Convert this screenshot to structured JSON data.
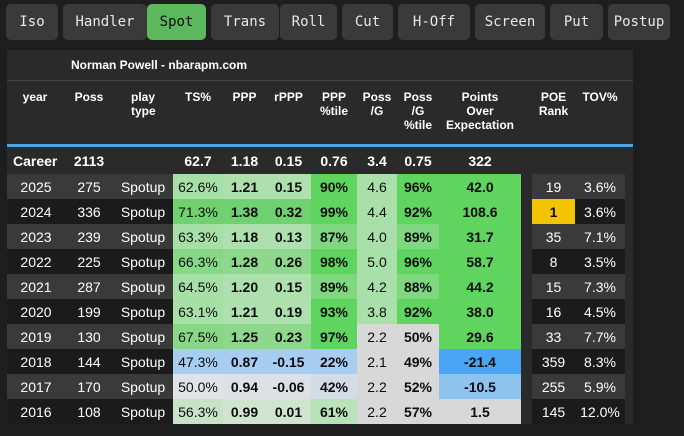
{
  "tabs": [
    {
      "label": "Iso",
      "active": false
    },
    {
      "label": "Handler",
      "active": false
    },
    {
      "label": "Spot",
      "active": true
    },
    {
      "label": "Trans",
      "active": false
    },
    {
      "label": "Roll",
      "active": false
    },
    {
      "label": "Cut",
      "active": false
    },
    {
      "label": "H-Off",
      "active": false
    },
    {
      "label": "Screen",
      "active": false
    },
    {
      "label": "Put",
      "active": false
    },
    {
      "label": "Postup",
      "active": false
    }
  ],
  "table": {
    "title": "Norman Powell - nbarapm.com",
    "headers": [
      "year",
      "Poss",
      "play\ntype",
      "TS%",
      "PPP",
      "rPPP",
      "PPP\n%tile",
      "Poss\n/G",
      "Poss\n/G\n%tile",
      "Points\nOver\nExpectation",
      "POE\nRank",
      "TOV%"
    ],
    "career": {
      "label": "Career",
      "poss": "2113",
      "play_type": "",
      "ts": "62.7",
      "ppp": "1.18",
      "rppp": "0.15",
      "ppp_pct": "0.76",
      "poss_g": "3.4",
      "poss_g_pct": "0.75",
      "poe": "322",
      "poe_rank": "",
      "tov": ""
    },
    "rows": [
      {
        "year": "2025",
        "poss": "275",
        "play_type": "Spotup",
        "ts": "62.6%",
        "ppp": "1.21",
        "rppp": "0.15",
        "ppp_pct": "90%",
        "poss_g": "4.6",
        "poss_g_pct": "96%",
        "poe": "42.0",
        "poe_rank": "19",
        "tov": "3.6%"
      },
      {
        "year": "2024",
        "poss": "336",
        "play_type": "Spotup",
        "ts": "71.3%",
        "ppp": "1.38",
        "rppp": "0.32",
        "ppp_pct": "99%",
        "poss_g": "4.4",
        "poss_g_pct": "92%",
        "poe": "108.6",
        "poe_rank": "1",
        "tov": "3.6%"
      },
      {
        "year": "2023",
        "poss": "239",
        "play_type": "Spotup",
        "ts": "63.3%",
        "ppp": "1.18",
        "rppp": "0.13",
        "ppp_pct": "87%",
        "poss_g": "4.0",
        "poss_g_pct": "89%",
        "poe": "31.7",
        "poe_rank": "35",
        "tov": "7.1%"
      },
      {
        "year": "2022",
        "poss": "225",
        "play_type": "Spotup",
        "ts": "66.3%",
        "ppp": "1.28",
        "rppp": "0.26",
        "ppp_pct": "98%",
        "poss_g": "5.0",
        "poss_g_pct": "96%",
        "poe": "58.7",
        "poe_rank": "8",
        "tov": "3.5%"
      },
      {
        "year": "2021",
        "poss": "287",
        "play_type": "Spotup",
        "ts": "64.5%",
        "ppp": "1.20",
        "rppp": "0.15",
        "ppp_pct": "89%",
        "poss_g": "4.2",
        "poss_g_pct": "88%",
        "poe": "44.2",
        "poe_rank": "15",
        "tov": "7.3%"
      },
      {
        "year": "2020",
        "poss": "199",
        "play_type": "Spotup",
        "ts": "63.1%",
        "ppp": "1.21",
        "rppp": "0.19",
        "ppp_pct": "93%",
        "poss_g": "3.8",
        "poss_g_pct": "92%",
        "poe": "38.0",
        "poe_rank": "16",
        "tov": "4.5%"
      },
      {
        "year": "2019",
        "poss": "130",
        "play_type": "Spotup",
        "ts": "67.5%",
        "ppp": "1.25",
        "rppp": "0.23",
        "ppp_pct": "97%",
        "poss_g": "2.2",
        "poss_g_pct": "50%",
        "poe": "29.6",
        "poe_rank": "33",
        "tov": "7.7%"
      },
      {
        "year": "2018",
        "poss": "144",
        "play_type": "Spotup",
        "ts": "47.3%",
        "ppp": "0.87",
        "rppp": "-0.15",
        "ppp_pct": "22%",
        "poss_g": "2.1",
        "poss_g_pct": "49%",
        "poe": "-21.4",
        "poe_rank": "359",
        "tov": "8.3%"
      },
      {
        "year": "2017",
        "poss": "170",
        "play_type": "Spotup",
        "ts": "50.0%",
        "ppp": "0.94",
        "rppp": "-0.06",
        "ppp_pct": "42%",
        "poss_g": "2.2",
        "poss_g_pct": "52%",
        "poe": "-10.5",
        "poe_rank": "255",
        "tov": "5.9%"
      },
      {
        "year": "2016",
        "poss": "108",
        "play_type": "Spotup",
        "ts": "56.3%",
        "ppp": "0.99",
        "rppp": "0.01",
        "ppp_pct": "61%",
        "poss_g": "2.2",
        "poss_g_pct": "57%",
        "poe": "1.5",
        "poe_rank": "145",
        "tov": "12.0%"
      }
    ]
  },
  "colors": {
    "active_tab": "#5cb85c",
    "accent_line": "#4da6e8",
    "rank_highlight": "#f5c400",
    "row_dark": "#3a3a3a",
    "row_darker": "#1b1b1b",
    "good_strong": "#5fd45f",
    "good_light": "#a9e5a9",
    "neutral": "#d8d8d8",
    "bad_light": "#a8cdf2",
    "bad_strong": "#4aa5f5"
  }
}
